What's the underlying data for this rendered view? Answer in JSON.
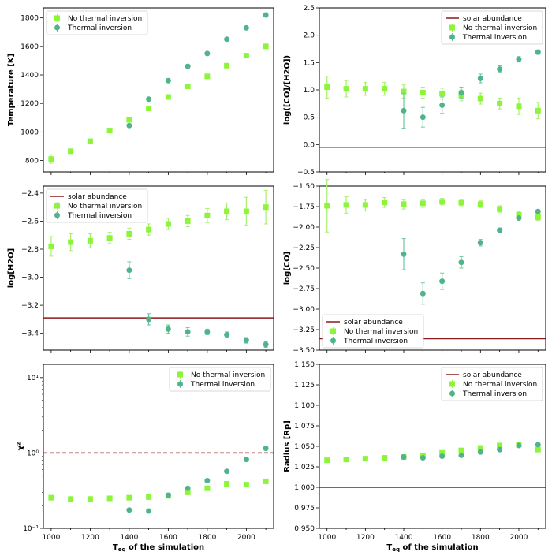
{
  "colors": {
    "no_inversion": "#8cf53a",
    "no_inversion_err": "#a6f06a",
    "thermal_inversion": "#4fb48a",
    "thermal_inversion_err": "#6ec7a0",
    "solar": "#8b1a1a",
    "chi_line": "#8b1a1a"
  },
  "legend_labels": {
    "solar": "solar abundance",
    "no_inv": "No thermal inversion",
    "inv": "Thermal inversion"
  },
  "xlabel": "T_eq of the simulation",
  "chart_data": [
    {
      "id": "temperature",
      "type": "scatter",
      "ylabel": "Temperature [K]",
      "xlim": [
        960,
        2140
      ],
      "ylim": [
        720,
        1870
      ],
      "yticks": [
        800,
        1000,
        1200,
        1400,
        1600,
        1800
      ],
      "ytick_labels": [
        "800",
        "1000",
        "1200",
        "1400",
        "1600",
        "1800"
      ],
      "legend": "top-left",
      "series": [
        {
          "name": "No thermal inversion",
          "x": [
            1000,
            1100,
            1200,
            1300,
            1400,
            1500,
            1600,
            1700,
            1800,
            1900,
            2000,
            2100
          ],
          "y": [
            810,
            865,
            935,
            1010,
            1085,
            1165,
            1245,
            1320,
            1390,
            1465,
            1535,
            1600
          ],
          "err": [
            30,
            15,
            10,
            10,
            15,
            10,
            10,
            10,
            10,
            10,
            10,
            10
          ]
        },
        {
          "name": "Thermal inversion",
          "x": [
            1400,
            1500,
            1600,
            1700,
            1800,
            1900,
            2000,
            2100
          ],
          "y": [
            1045,
            1230,
            1360,
            1460,
            1550,
            1650,
            1730,
            1820
          ],
          "err": [
            10,
            10,
            10,
            10,
            10,
            10,
            10,
            10
          ]
        }
      ]
    },
    {
      "id": "co_h2o",
      "type": "scatter",
      "ylabel": "log([CO]/[H2O])",
      "xlim": [
        960,
        2140
      ],
      "ylim": [
        -0.5,
        2.5
      ],
      "yticks": [
        -0.5,
        0.0,
        0.5,
        1.0,
        1.5,
        2.0,
        2.5
      ],
      "ytick_labels": [
        "−0.5",
        "0.0",
        "0.5",
        "1.0",
        "1.5",
        "2.0",
        "2.5"
      ],
      "hline": -0.05,
      "legend": "top-right",
      "series": [
        {
          "name": "No thermal inversion",
          "x": [
            1000,
            1100,
            1200,
            1300,
            1400,
            1500,
            1600,
            1700,
            1800,
            1900,
            2000,
            2100
          ],
          "y": [
            1.05,
            1.02,
            1.02,
            1.02,
            0.97,
            0.95,
            0.93,
            0.9,
            0.84,
            0.75,
            0.7,
            0.62
          ],
          "err": [
            0.2,
            0.15,
            0.12,
            0.12,
            0.12,
            0.1,
            0.1,
            0.1,
            0.1,
            0.1,
            0.15,
            0.15
          ]
        },
        {
          "name": "Thermal inversion",
          "x": [
            1400,
            1500,
            1600,
            1700,
            1800,
            1900,
            2000,
            2100
          ],
          "y": [
            0.62,
            0.5,
            0.72,
            0.95,
            1.21,
            1.38,
            1.56,
            1.69
          ],
          "err": [
            0.32,
            0.18,
            0.15,
            0.1,
            0.08,
            0.06,
            0.05,
            0.04
          ]
        }
      ]
    },
    {
      "id": "h2o",
      "type": "scatter",
      "ylabel": "log[H2O]",
      "xlim": [
        960,
        2140
      ],
      "ylim": [
        -3.52,
        -2.35
      ],
      "yticks": [
        -3.4,
        -3.2,
        -3.0,
        -2.8,
        -2.6,
        -2.4
      ],
      "ytick_labels": [
        "−3.4",
        "−3.2",
        "−3.0",
        "−2.8",
        "−2.6",
        "−2.4"
      ],
      "hline": -3.29,
      "legend": "top-left",
      "series": [
        {
          "name": "No thermal inversion",
          "x": [
            1000,
            1100,
            1200,
            1300,
            1400,
            1500,
            1600,
            1700,
            1800,
            1900,
            2000,
            2100
          ],
          "y": [
            -2.78,
            -2.75,
            -2.74,
            -2.72,
            -2.69,
            -2.66,
            -2.62,
            -2.6,
            -2.56,
            -2.53,
            -2.53,
            -2.5
          ],
          "err": [
            0.07,
            0.06,
            0.05,
            0.04,
            0.04,
            0.04,
            0.04,
            0.04,
            0.05,
            0.06,
            0.1,
            0.12
          ]
        },
        {
          "name": "Thermal inversion",
          "x": [
            1400,
            1500,
            1600,
            1700,
            1800,
            1900,
            2000,
            2100
          ],
          "y": [
            -2.95,
            -3.3,
            -3.37,
            -3.39,
            -3.39,
            -3.41,
            -3.45,
            -3.48
          ],
          "err": [
            0.06,
            0.04,
            0.03,
            0.03,
            0.02,
            0.02,
            0.02,
            0.02
          ]
        }
      ]
    },
    {
      "id": "co",
      "type": "scatter",
      "ylabel": "log[CO]",
      "xlim": [
        960,
        2140
      ],
      "ylim": [
        -3.5,
        -1.5
      ],
      "yticks": [
        -3.5,
        -3.25,
        -3.0,
        -2.75,
        -2.5,
        -2.25,
        -2.0,
        -1.75,
        -1.5
      ],
      "ytick_labels": [
        "−3.50",
        "−3.25",
        "−3.00",
        "−2.75",
        "−2.50",
        "−2.25",
        "−2.00",
        "−1.75",
        "−1.50"
      ],
      "hline": -3.36,
      "legend": "bottom-left",
      "series": [
        {
          "name": "No thermal inversion",
          "x": [
            1000,
            1100,
            1200,
            1300,
            1400,
            1500,
            1600,
            1700,
            1800,
            1900,
            2000,
            2100
          ],
          "y": [
            -1.74,
            -1.73,
            -1.73,
            -1.7,
            -1.72,
            -1.71,
            -1.69,
            -1.7,
            -1.72,
            -1.78,
            -1.85,
            -1.88
          ],
          "err": [
            0.32,
            0.1,
            0.07,
            0.06,
            0.06,
            0.05,
            0.04,
            0.04,
            0.04,
            0.04,
            0.04,
            0.04
          ]
        },
        {
          "name": "Thermal inversion",
          "x": [
            1400,
            1500,
            1600,
            1700,
            1800,
            1900,
            2000,
            2100
          ],
          "y": [
            -2.33,
            -2.81,
            -2.66,
            -2.43,
            -2.19,
            -2.04,
            -1.89,
            -1.81
          ],
          "err": [
            0.19,
            0.13,
            0.1,
            0.07,
            0.04,
            0.03,
            0.02,
            0.02
          ]
        }
      ]
    },
    {
      "id": "chi2",
      "type": "scatter",
      "ylabel": "χ²",
      "xlim": [
        960,
        2140
      ],
      "ylog": true,
      "ylim": [
        0.1,
        15
      ],
      "yticks": [
        0.1,
        1,
        10
      ],
      "ytick_labels": [
        "10⁻¹",
        "10⁰",
        "10¹"
      ],
      "hline": 1.0,
      "hline_dashed": true,
      "legend": "top-right",
      "series": [
        {
          "name": "No thermal inversion",
          "x": [
            1000,
            1100,
            1200,
            1300,
            1400,
            1500,
            1600,
            1700,
            1800,
            1900,
            2000,
            2100
          ],
          "y": [
            0.255,
            0.245,
            0.245,
            0.25,
            0.255,
            0.26,
            0.27,
            0.3,
            0.34,
            0.39,
            0.38,
            0.42
          ],
          "err": [
            0,
            0,
            0,
            0,
            0,
            0,
            0,
            0,
            0,
            0,
            0,
            0
          ]
        },
        {
          "name": "Thermal inversion",
          "x": [
            1400,
            1500,
            1600,
            1700,
            1800,
            1900,
            2000,
            2100
          ],
          "y": [
            0.175,
            0.17,
            0.275,
            0.34,
            0.43,
            0.57,
            0.82,
            1.15
          ],
          "err": [
            0,
            0,
            0,
            0,
            0,
            0,
            0,
            0
          ]
        }
      ]
    },
    {
      "id": "radius",
      "type": "scatter",
      "ylabel": "Radius [Rp]",
      "xlim": [
        960,
        2140
      ],
      "ylim": [
        0.95,
        1.15
      ],
      "yticks": [
        0.95,
        0.975,
        1.0,
        1.025,
        1.05,
        1.075,
        1.1,
        1.125,
        1.15
      ],
      "ytick_labels": [
        "0.950",
        "0.975",
        "1.000",
        "1.025",
        "1.050",
        "1.075",
        "1.100",
        "1.125",
        "1.150"
      ],
      "hline": 1.0,
      "legend": "top-right",
      "series": [
        {
          "name": "No thermal inversion",
          "x": [
            1000,
            1100,
            1200,
            1300,
            1400,
            1500,
            1600,
            1700,
            1800,
            1900,
            2000,
            2100
          ],
          "y": [
            1.033,
            1.034,
            1.035,
            1.036,
            1.037,
            1.039,
            1.042,
            1.045,
            1.048,
            1.051,
            1.052,
            1.046
          ],
          "err": [
            0.001,
            0.001,
            0.001,
            0.001,
            0.001,
            0.001,
            0.001,
            0.001,
            0.001,
            0.001,
            0.001,
            0.001
          ]
        },
        {
          "name": "Thermal inversion",
          "x": [
            1400,
            1500,
            1600,
            1700,
            1800,
            1900,
            2000,
            2100
          ],
          "y": [
            1.037,
            1.036,
            1.038,
            1.039,
            1.043,
            1.046,
            1.051,
            1.052
          ],
          "err": [
            0.001,
            0.001,
            0.001,
            0.001,
            0.001,
            0.001,
            0.001,
            0.001
          ]
        }
      ]
    }
  ]
}
